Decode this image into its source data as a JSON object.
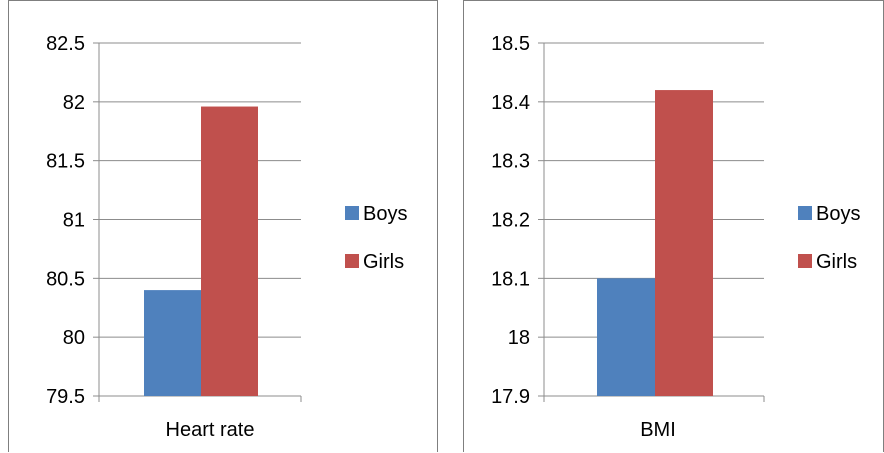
{
  "chart_data": [
    {
      "type": "bar",
      "categories": [
        "Heart rate"
      ],
      "series": [
        {
          "name": "Boys",
          "values": [
            80.4
          ],
          "color": "#4f81bd"
        },
        {
          "name": "Girls",
          "values": [
            81.96
          ],
          "color": "#c0504d"
        }
      ],
      "yticks": [
        "82.5",
        "82",
        "81.5",
        "81",
        "80.5",
        "80",
        "79.5"
      ],
      "ylim": [
        79.5,
        82.5
      ],
      "grid": true,
      "legend": "right"
    },
    {
      "type": "bar",
      "categories": [
        "BMI"
      ],
      "series": [
        {
          "name": "Boys",
          "values": [
            18.1
          ],
          "color": "#4f81bd"
        },
        {
          "name": "Girls",
          "values": [
            18.42
          ],
          "color": "#c0504d"
        }
      ],
      "yticks": [
        "18.5",
        "18.4",
        "18.3",
        "18.2",
        "18.1",
        "18",
        "17.9"
      ],
      "ylim": [
        17.9,
        18.5
      ],
      "grid": true,
      "legend": "right"
    }
  ]
}
